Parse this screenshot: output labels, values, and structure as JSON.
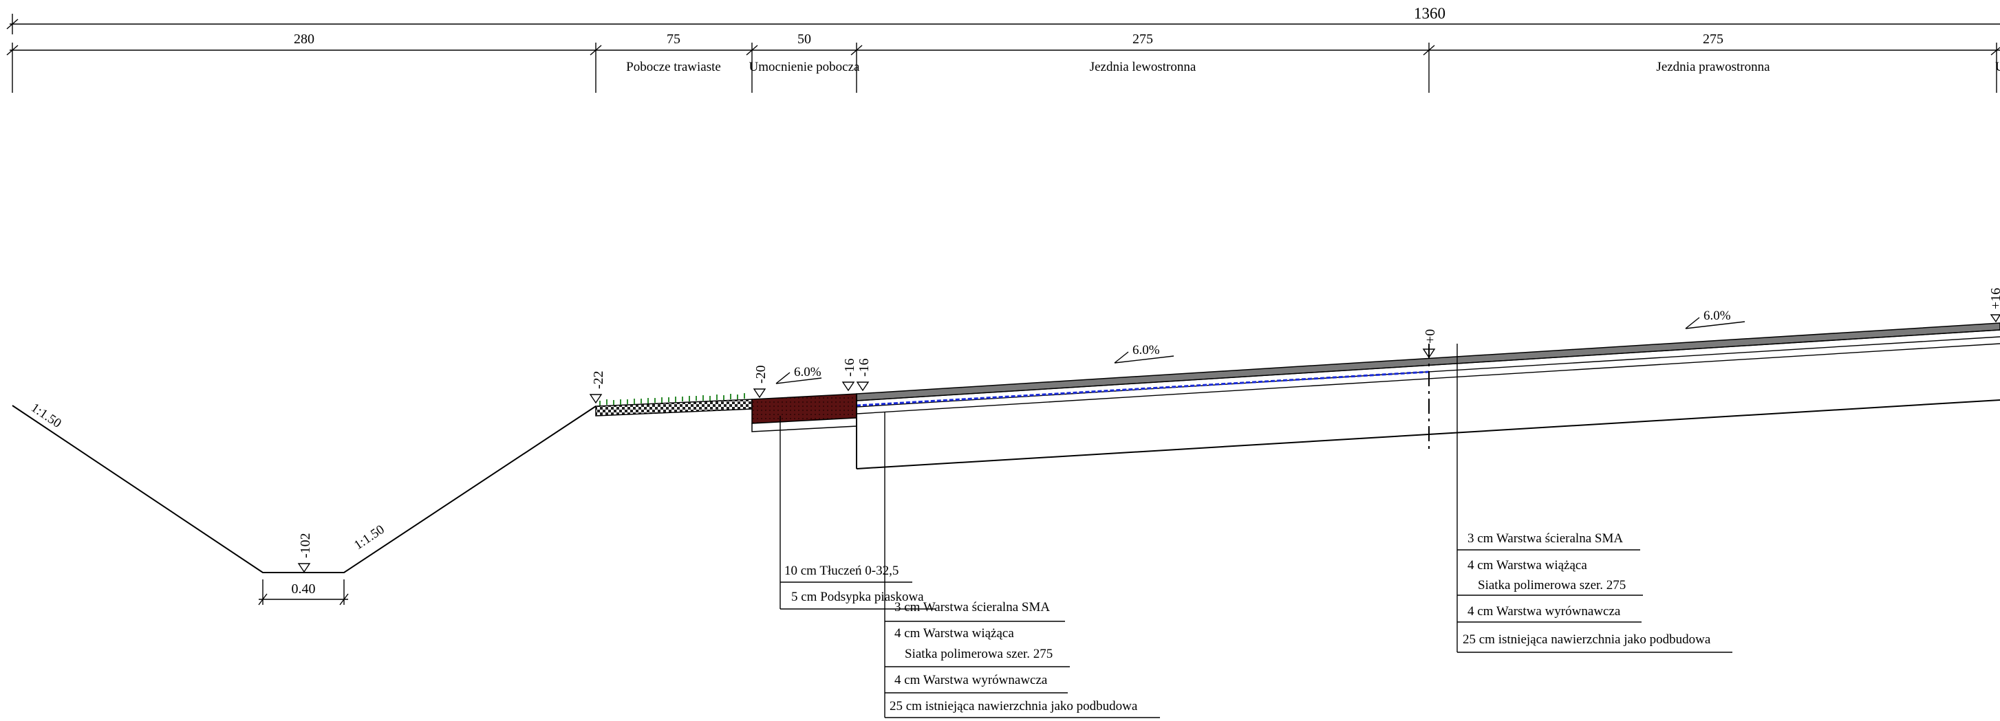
{
  "dimensions": {
    "total": "1360",
    "segments": [
      "280",
      "75",
      "50",
      "275",
      "275"
    ]
  },
  "segment_labels": {
    "grass_shoulder": "Pobocze trawiaste",
    "shoulder_reinforcement": "Umocnienie pobocza",
    "left_lane": "Jezdnia lewostronna",
    "right_lane": "Jezdnia prawostronna",
    "cut_edge": "U"
  },
  "elevations": {
    "ditch_bottom": "-102",
    "grass_edge": "-22",
    "shoulder_edge": "-20",
    "pave_edge_a": "-16",
    "pave_edge_b": "-16",
    "axis": "+0",
    "right_edge": "+16"
  },
  "slopes": {
    "left_embankment": "1:1.50",
    "right_embankment": "1:1.50",
    "ditch_width": "0.40"
  },
  "crossfall": {
    "shoulder": "6.0%",
    "left_lane": "6.0%",
    "right_lane": "6.0%"
  },
  "shoulder_layers": [
    "10 cm Tłuczeń 0-32,5",
    "5 cm Podsypka piaskowa"
  ],
  "left_pavement_layers": [
    "3 cm Warstwa ścieralna SMA",
    "4 cm Warstwa wiążąca",
    "Siatka polimerowa szer. 275",
    "4 cm Warstwa wyrównawcza",
    "25 cm istniejąca nawierzchnia jako podbudowa"
  ],
  "right_pavement_layers": [
    "3 cm Warstwa ścieralna SMA",
    "4 cm Warstwa wiążąca",
    "Siatka polimerowa szer. 275",
    "4 cm Warstwa wyrównawcza",
    "25 cm istniejąca nawierzchnia jako podbudowa"
  ],
  "colors": {
    "shoulder_fill": "#5a1212",
    "geogrid": "#1a2bd6",
    "grass": "#2e8b2e",
    "wearing_course": "#7a7a7a"
  }
}
